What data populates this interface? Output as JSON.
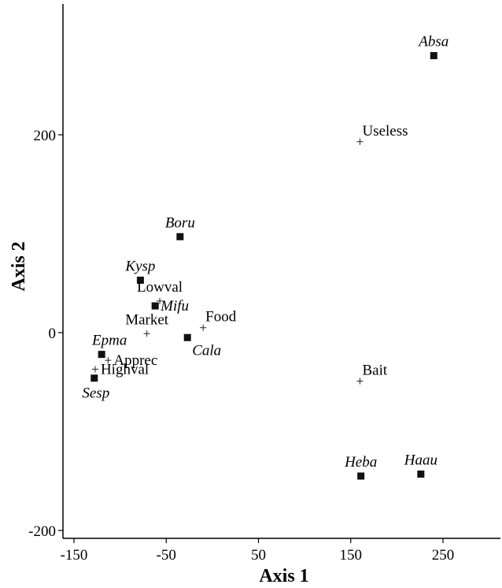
{
  "chart_data": {
    "type": "scatter",
    "xlabel": "Axis 1",
    "ylabel": "Axis 2",
    "xlim": [
      -155,
      285
    ],
    "ylim": [
      -205,
      325
    ],
    "x_ticks": [
      -150,
      -50,
      50,
      150,
      250
    ],
    "y_ticks": [
      -200,
      0,
      200
    ],
    "grid": false,
    "series": [
      {
        "marker": "square",
        "label_style": "italic",
        "points": [
          {
            "label": "Absa",
            "x": 240,
            "y": 280,
            "label_pos": "above"
          },
          {
            "label": "Boru",
            "x": -35,
            "y": 97,
            "label_pos": "above"
          },
          {
            "label": "Kysp",
            "x": -78,
            "y": 53,
            "label_pos": "above"
          },
          {
            "label": "Mifu",
            "x": -62,
            "y": 27,
            "label_pos": "right"
          },
          {
            "label": "Cala",
            "x": -27,
            "y": -5,
            "label_pos": "below-right"
          },
          {
            "label": "Epma",
            "x": -120,
            "y": -22,
            "label_pos": "above-left"
          },
          {
            "label": "Sesp",
            "x": -128,
            "y": -46,
            "label_pos": "below"
          },
          {
            "label": "Heba",
            "x": 161,
            "y": -145,
            "label_pos": "above"
          },
          {
            "label": "Haau",
            "x": 226,
            "y": -143,
            "label_pos": "above"
          }
        ]
      },
      {
        "marker": "plus",
        "label_style": "normal",
        "points": [
          {
            "label": "Useless",
            "x": 160,
            "y": 193,
            "label_pos": "above-right"
          },
          {
            "label": "Lowval",
            "x": -57,
            "y": 32,
            "label_pos": "above"
          },
          {
            "label": "Food",
            "x": -10,
            "y": 5,
            "label_pos": "above-right"
          },
          {
            "label": "Market",
            "x": -71,
            "y": -1,
            "label_pos": "above"
          },
          {
            "label": "Apprec",
            "x": -113,
            "y": -28,
            "label_pos": "right"
          },
          {
            "label": "Highval",
            "x": -127,
            "y": -37,
            "label_pos": "right"
          },
          {
            "label": "Bait",
            "x": 160,
            "y": -49,
            "label_pos": "above-right"
          }
        ]
      }
    ]
  }
}
